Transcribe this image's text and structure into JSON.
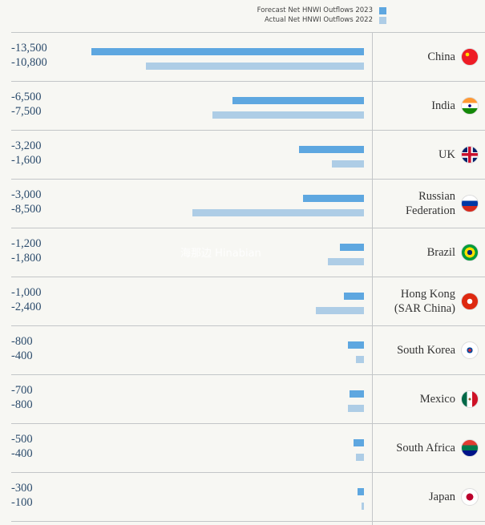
{
  "legend": [
    {
      "label": "Forecast Net HNWI Outflows 2023",
      "color": "#5ea7e0"
    },
    {
      "label": "Actual Net HNWI Outflows 2022",
      "color": "#aecde6"
    }
  ],
  "watermark": "海那边 Hinabian",
  "chart_data": {
    "type": "bar",
    "orientation": "horizontal",
    "categories": [
      "China",
      "India",
      "UK",
      "Russian Federation",
      "Brazil",
      "Hong Kong (SAR China)",
      "South Korea",
      "Mexico",
      "South Africa",
      "Japan"
    ],
    "series": [
      {
        "name": "Forecast Net HNWI Outflows 2023",
        "values": [
          -13500,
          -6500,
          -3200,
          -3000,
          -1200,
          -1000,
          -800,
          -700,
          -500,
          -300
        ]
      },
      {
        "name": "Actual Net HNWI Outflows 2022",
        "values": [
          -10800,
          -7500,
          -1600,
          -8500,
          -1800,
          -2400,
          -400,
          -800,
          -400,
          -100
        ]
      }
    ],
    "value_labels": [
      [
        "-13,500",
        "-10,800"
      ],
      [
        "-6,500",
        "-7,500"
      ],
      [
        "-3,200",
        "-1,600"
      ],
      [
        "-3,000",
        "-8,500"
      ],
      [
        "-1,200",
        "-1,800"
      ],
      [
        "-1,000",
        "-2,400"
      ],
      [
        "-800",
        "-400"
      ],
      [
        "-700",
        "-800"
      ],
      [
        "-500",
        "-400"
      ],
      [
        "-300",
        "-100"
      ]
    ],
    "country_lines": [
      [
        "China"
      ],
      [
        "India"
      ],
      [
        "UK"
      ],
      [
        "Russian",
        "Federation"
      ],
      [
        "Brazil"
      ],
      [
        "Hong Kong",
        "(SAR China)"
      ],
      [
        "South Korea"
      ],
      [
        "Mexico"
      ],
      [
        "South Africa"
      ],
      [
        "Japan"
      ]
    ],
    "flag_icons": [
      "china-flag-icon",
      "india-flag-icon",
      "uk-flag-icon",
      "russia-flag-icon",
      "brazil-flag-icon",
      "hong-kong-flag-icon",
      "south-korea-flag-icon",
      "mexico-flag-icon",
      "south-africa-flag-icon",
      "japan-flag-icon"
    ],
    "legend_position": "top-right",
    "grid": false
  }
}
